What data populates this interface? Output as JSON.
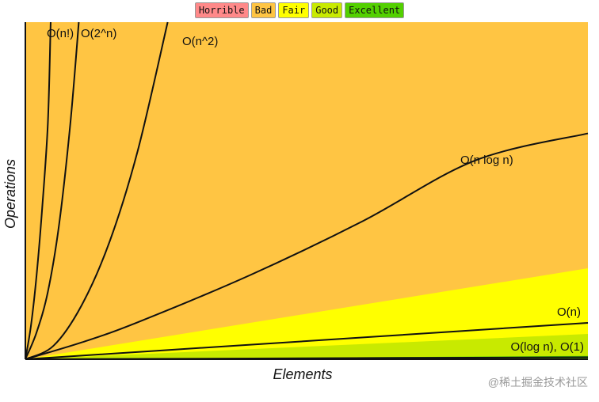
{
  "legend": [
    {
      "label": "Horrible",
      "color": "#ff8989"
    },
    {
      "label": "Bad",
      "color": "#ffc543"
    },
    {
      "label": "Fair",
      "color": "#ffff00"
    },
    {
      "label": "Good",
      "color": "#c8ea00"
    },
    {
      "label": "Excellent",
      "color": "#53d000"
    }
  ],
  "watermark": "@稀土掘金技术社区",
  "chart_data": {
    "type": "line",
    "title": "",
    "xlabel": "Elements",
    "ylabel": "Operations",
    "xlim": [
      0,
      100
    ],
    "ylim": [
      0,
      100
    ],
    "grid": false,
    "legend_position": "top-center",
    "regions": [
      {
        "name": "Horrible",
        "color": "#ff8989",
        "upper_at_xmax": 100
      },
      {
        "name": "Bad",
        "color": "#ffc543",
        "upper_at_xmax": 100
      },
      {
        "name": "Fair",
        "color": "#ffff00",
        "upper_at_xmax": 27
      },
      {
        "name": "Good",
        "color": "#c8ea00",
        "upper_at_xmax": 7.5
      },
      {
        "name": "Excellent",
        "color": "#53d000",
        "upper_at_xmax": 1
      }
    ],
    "series": [
      {
        "name": "O(n!)",
        "x": [
          0,
          1,
          2,
          3,
          4,
          4.5
        ],
        "y": [
          0,
          10,
          25,
          45,
          70,
          100
        ]
      },
      {
        "name": "O(2^n)",
        "x": [
          0,
          2,
          4,
          6,
          8,
          9.5
        ],
        "y": [
          0,
          8,
          20,
          40,
          70,
          100
        ]
      },
      {
        "name": "O(n^2)",
        "x": [
          0,
          5,
          10,
          15,
          20,
          25.3
        ],
        "y": [
          0,
          4,
          16,
          35,
          62,
          100
        ]
      },
      {
        "name": "O(n log n)",
        "x": [
          0,
          10,
          20,
          40,
          60,
          80,
          100
        ],
        "y": [
          0,
          5,
          11,
          25,
          41,
          59,
          67
        ]
      },
      {
        "name": "O(n)",
        "x": [
          0,
          25,
          50,
          75,
          100
        ],
        "y": [
          0,
          2.7,
          5.4,
          8.1,
          10.8
        ]
      },
      {
        "name": "O(log n), O(1)",
        "x": [
          0,
          100
        ],
        "y": [
          0,
          0.6
        ]
      }
    ]
  }
}
